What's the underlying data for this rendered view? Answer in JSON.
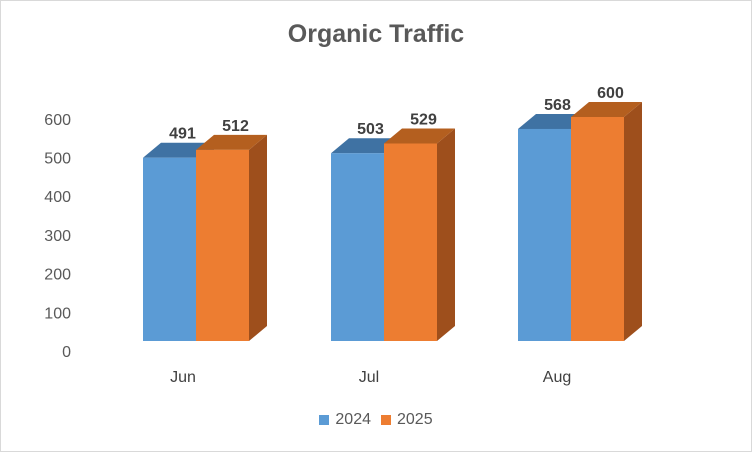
{
  "chart_data": {
    "type": "bar",
    "title": "Organic Traffic",
    "categories": [
      "Jun",
      "Jul",
      "Aug"
    ],
    "series": [
      {
        "name": "2024",
        "values": [
          491,
          503,
          568
        ],
        "color": "#5b9bd5",
        "top_color": "#3f72a3",
        "side_color": "#41719c"
      },
      {
        "name": "2025",
        "values": [
          512,
          529,
          600
        ],
        "color": "#ed7d31",
        "top_color": "#b45f1f",
        "side_color": "#9e4f1c"
      }
    ],
    "yticks": [
      "0",
      "100",
      "200",
      "300",
      "400",
      "500",
      "600"
    ],
    "ylim": [
      0,
      600
    ],
    "xlabel": "",
    "ylabel": "",
    "legend_position": "bottom",
    "grid": false,
    "three_d": true
  }
}
